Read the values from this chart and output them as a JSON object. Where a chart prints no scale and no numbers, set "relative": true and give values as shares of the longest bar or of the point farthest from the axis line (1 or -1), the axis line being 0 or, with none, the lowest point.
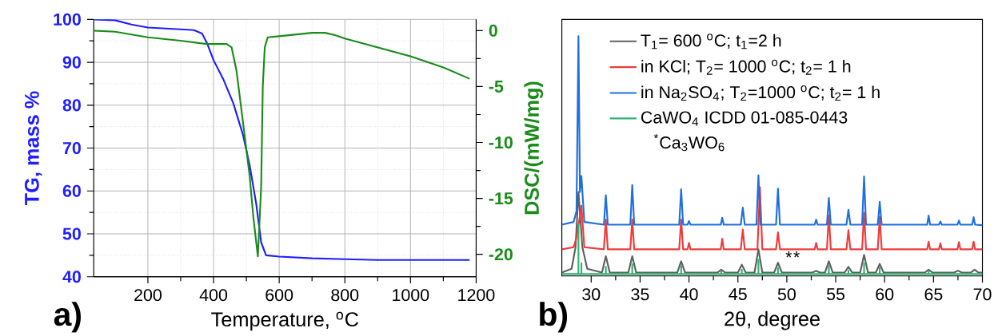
{
  "chart_data": [
    {
      "type": "line",
      "xlabel": "Temperature, $^{o}$C",
      "ylabel": "TG, mass %",
      "y2label": "DSC/(mW/mg)",
      "xlim": [
        35,
        1200
      ],
      "xticks": [
        200,
        400,
        600,
        800,
        1000,
        1200
      ],
      "ylim": [
        40,
        100
      ],
      "yticks": [
        40,
        50,
        60,
        70,
        80,
        90,
        100
      ],
      "y2lim": [
        -22,
        1
      ],
      "y2ticks": [
        0,
        -5,
        -10,
        -15,
        -20
      ],
      "grid": true,
      "annotations": [
        "a)"
      ],
      "series": [
        {
          "color": "#1f1fff",
          "x": [
            35,
            100,
            150,
            200,
            300,
            340,
            365,
            380,
            400,
            430,
            460,
            490,
            510,
            530,
            545,
            560,
            600,
            700,
            800,
            900,
            1000,
            1100,
            1180
          ],
          "values": [
            100,
            99.8,
            98.8,
            98.1,
            97.7,
            97.5,
            96.7,
            94.5,
            90.5,
            86,
            80.5,
            73,
            66,
            57,
            48,
            45,
            44.7,
            44.3,
            44.1,
            43.9,
            43.9,
            43.9,
            43.9
          ]
        },
        {
          "color": "#1a8c1a",
          "axis": "y2",
          "x": [
            35,
            100,
            200,
            300,
            380,
            440,
            455,
            470,
            488,
            510,
            521,
            535,
            545,
            550,
            556,
            565,
            600,
            700,
            740,
            770,
            800,
            1000,
            1060,
            1100,
            1180
          ],
          "values": [
            0,
            -0.1,
            -0.6,
            -0.9,
            -1.2,
            -1.2,
            -1.5,
            -3.6,
            -7.8,
            -13,
            -16.6,
            -20.2,
            -14,
            -5,
            -1.5,
            -0.6,
            -0.5,
            -0.2,
            -0.2,
            -0.4,
            -0.7,
            -2.3,
            -2.9,
            -3.3,
            -4.3
          ]
        }
      ]
    },
    {
      "type": "line",
      "xlabel": "2θ, degree",
      "relative": true,
      "xlim": [
        27,
        70
      ],
      "xticks": [
        30,
        35,
        40,
        45,
        50,
        55,
        60,
        65,
        70
      ],
      "legend": "top left",
      "annotations": [
        "b)",
        "$^{*}$Ca$_{3}$WO$_{6}$",
        {
          "text": "*",
          "x": 50.2,
          "y": 0.03
        },
        {
          "text": "*",
          "x": 51.0,
          "y": 0.03
        }
      ],
      "series": [
        {
          "name": "T$_{1}$= 600 $^{o}$C; t$_{1}$=2 h",
          "color": "#606060",
          "x": [
            27,
            28.0,
            28.4,
            28.7,
            29.1,
            29.6,
            31.1,
            31.5,
            31.9,
            33.8,
            34.2,
            34.6,
            38.8,
            39.2,
            39.6,
            42.9,
            43.3,
            43.7,
            45.0,
            45.4,
            45.8,
            46.7,
            47.1,
            47.5,
            48.7,
            49.1,
            49.5,
            52.6,
            53.0,
            53.4,
            53.9,
            54.3,
            54.7,
            55.9,
            56.3,
            56.7,
            57.5,
            57.9,
            58.3,
            59.1,
            59.5,
            59.9,
            64.1,
            64.5,
            64.9,
            67.1,
            67.5,
            67.9,
            68.8,
            69.2,
            69.6,
            70
          ],
          "values": [
            0.014,
            0.03,
            0.12,
            0.35,
            0.12,
            0.03,
            0.014,
            0.082,
            0.014,
            0.014,
            0.082,
            0.014,
            0.014,
            0.061,
            0.014,
            0.014,
            0.026,
            0.014,
            0.014,
            0.047,
            0.014,
            0.014,
            0.111,
            0.014,
            0.014,
            0.055,
            0.014,
            0.014,
            0.021,
            0.014,
            0.014,
            0.061,
            0.014,
            0.014,
            0.038,
            0.014,
            0.014,
            0.088,
            0.014,
            0.014,
            0.05,
            0.014,
            0.014,
            0.026,
            0.014,
            0.014,
            0.022,
            0.014,
            0.014,
            0.026,
            0.014,
            0.014
          ]
        },
        {
          "name": "in KCl; T$_{2}$= 1000 $^{o}$C; t$_{2}$= 1 h",
          "color": "#ee3b3b",
          "x": [
            27,
            28.2,
            28.5,
            28.7,
            28.85,
            29.0,
            29.3,
            31.3,
            31.5,
            31.7,
            34.0,
            34.2,
            34.4,
            39.0,
            39.2,
            39.4,
            39.85,
            40.0,
            40.15,
            43.25,
            43.4,
            43.55,
            45.3,
            45.5,
            45.7,
            47.0,
            47.25,
            47.5,
            48.9,
            49.1,
            49.3,
            52.85,
            53.0,
            53.15,
            54.1,
            54.3,
            54.5,
            56.1,
            56.3,
            56.5,
            57.7,
            57.9,
            58.1,
            59.3,
            59.5,
            59.7,
            64.35,
            64.5,
            64.65,
            65.55,
            65.7,
            65.85,
            67.45,
            67.6,
            67.75,
            68.95,
            69.1,
            69.25,
            70
          ],
          "values": [
            0.111,
            0.12,
            0.16,
            null,
            0.25,
            0.293,
            0.12,
            0.111,
            0.235,
            0.111,
            0.111,
            0.235,
            0.111,
            0.111,
            0.235,
            0.111,
            0.111,
            0.138,
            0.111,
            0.111,
            0.155,
            0.111,
            0.111,
            0.194,
            0.111,
            0.111,
            0.37,
            0.111,
            0.111,
            0.182,
            0.111,
            0.111,
            0.138,
            0.111,
            0.111,
            0.253,
            0.111,
            0.111,
            0.191,
            0.111,
            0.111,
            0.264,
            0.111,
            0.111,
            0.246,
            0.111,
            0.111,
            0.143,
            0.111,
            0.111,
            0.136,
            0.111,
            0.111,
            0.141,
            0.111,
            0.111,
            0.143,
            0.111,
            0.111
          ]
        },
        {
          "name": "in Na$_{2}$SO$_{4}$; T$_{2}$=1000 $^{o}$C; t$_{2}$= 1 h",
          "color": "#1e6fe0",
          "x": [
            27,
            28.2,
            28.5,
            28.7,
            28.85,
            29.0,
            29.3,
            31.3,
            31.5,
            31.7,
            34.0,
            34.2,
            34.4,
            39.0,
            39.2,
            39.4,
            39.85,
            40.0,
            40.15,
            43.25,
            43.4,
            43.55,
            45.3,
            45.5,
            45.7,
            46.9,
            47.1,
            47.3,
            48.9,
            49.1,
            49.3,
            52.85,
            53.0,
            53.15,
            54.1,
            54.3,
            54.5,
            56.1,
            56.3,
            56.5,
            57.7,
            57.9,
            58.1,
            59.3,
            59.5,
            59.7,
            64.35,
            64.5,
            64.65,
            65.55,
            65.7,
            65.85,
            67.45,
            67.6,
            67.75,
            68.95,
            69.1,
            69.25,
            70
          ],
          "values": [
            0.214,
            0.225,
            0.27,
            1.0,
            0.35,
            0.417,
            0.225,
            0.214,
            0.337,
            0.214,
            0.214,
            0.379,
            0.214,
            0.214,
            0.362,
            0.214,
            0.214,
            0.229,
            0.214,
            0.214,
            0.243,
            0.214,
            0.214,
            0.285,
            0.214,
            0.214,
            0.42,
            0.214,
            0.214,
            0.364,
            0.214,
            0.214,
            0.235,
            0.214,
            0.214,
            0.325,
            0.214,
            0.214,
            0.276,
            0.214,
            0.214,
            0.415,
            0.214,
            0.214,
            0.309,
            0.214,
            0.214,
            0.252,
            0.214,
            0.214,
            0.227,
            0.214,
            0.214,
            0.231,
            0.214,
            0.214,
            0.245,
            0.214,
            0.212
          ]
        },
        {
          "name": "CaWO$_{4}$ ICDD 01-085-0443",
          "color": "#2eb46e",
          "x": [
            27,
            28.7,
            28.7,
            28.7,
            29.0,
            29.0,
            29.0,
            31.5,
            31.5,
            31.5,
            34.2,
            34.2,
            34.2,
            39.2,
            39.2,
            39.2,
            43.3,
            43.3,
            43.3,
            45.4,
            45.4,
            45.4,
            47.1,
            47.1,
            47.1,
            49.1,
            49.1,
            49.1,
            54.3,
            54.3,
            54.3,
            56.3,
            56.3,
            56.3,
            57.9,
            57.9,
            57.9,
            59.5,
            59.5,
            59.5,
            64.5,
            64.5,
            64.5,
            70
          ],
          "values": [
            0.008,
            0.008,
            0.211,
            0.008,
            0.008,
            0.053,
            0.008,
            0.008,
            0.038,
            0.008,
            0.008,
            0.049,
            0.008,
            0.008,
            0.041,
            0.008,
            0.008,
            0.018,
            0.008,
            0.008,
            0.026,
            0.008,
            0.008,
            0.068,
            0.008,
            0.008,
            0.033,
            0.008,
            0.008,
            0.041,
            0.008,
            0.008,
            0.022,
            0.008,
            0.008,
            0.053,
            0.008,
            0.008,
            0.033,
            0.008,
            0.008,
            0.018,
            0.008,
            0.008
          ]
        }
      ]
    }
  ]
}
